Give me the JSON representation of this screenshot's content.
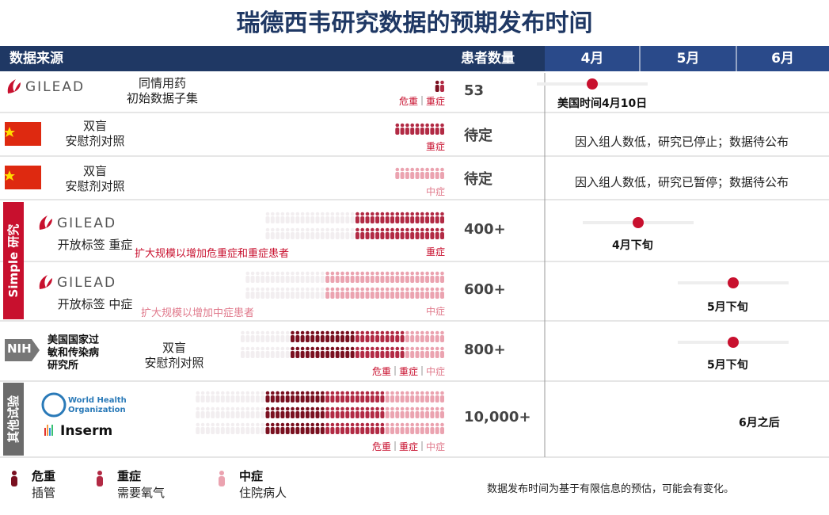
{
  "title": "瑞德西韦研究数据的预期发布时间",
  "header": {
    "source": "数据来源",
    "patients": "患者数量",
    "months": [
      "4月",
      "5月",
      "6月"
    ]
  },
  "groups": [
    {
      "label": "Simple 研究"
    },
    {
      "label": "其他试验"
    }
  ],
  "rows": [
    {
      "logo": "GILEAD",
      "design": [
        "同情用药",
        "初始数据子集"
      ],
      "severity": [
        "危重",
        "重症"
      ],
      "patients": "53",
      "timeline": "美国时间4月10日"
    },
    {
      "design": [
        "双盲",
        "安慰剂对照"
      ],
      "severity": [
        "重症"
      ],
      "patients": "待定",
      "timeline": "因入组人数低，研究已停止；数据待公布"
    },
    {
      "design": [
        "双盲",
        "安慰剂对照"
      ],
      "severity": [
        "中症"
      ],
      "patients": "待定",
      "timeline": "因入组人数低，研究已暂停；数据待公布"
    },
    {
      "logo": "GILEAD",
      "design": [
        "开放标签 重症"
      ],
      "note": "扩大规模以增加危重症和重症患者",
      "severity": [
        "重症"
      ],
      "patients": "400+",
      "timeline": "4月下旬"
    },
    {
      "logo": "GILEAD",
      "design": [
        "开放标签 中症"
      ],
      "note": "扩大规模以增加中症患者",
      "severity": [
        "中症"
      ],
      "patients": "600+",
      "timeline": "5月下旬"
    },
    {
      "logo": "NIH",
      "org": [
        "美国国家过",
        "敏和传染病",
        "研究所"
      ],
      "design": [
        "双盲",
        "安慰剂对照"
      ],
      "severity": [
        "危重",
        "重症",
        "中症"
      ],
      "patients": "800+",
      "timeline": "5月下旬"
    },
    {
      "logos": [
        "World Health",
        "Organization",
        "Inserm"
      ],
      "severity": [
        "危重",
        "重症",
        "中症"
      ],
      "patients": "10,000+",
      "timeline": "6月之后"
    }
  ],
  "legend": [
    {
      "name": "危重",
      "desc": "插管"
    },
    {
      "name": "重症",
      "desc": "需要氧气"
    },
    {
      "name": "中症",
      "desc": "住院病人"
    }
  ],
  "footnote": "数据发布时间为基于有限信息的预估，可能会有变化。"
}
